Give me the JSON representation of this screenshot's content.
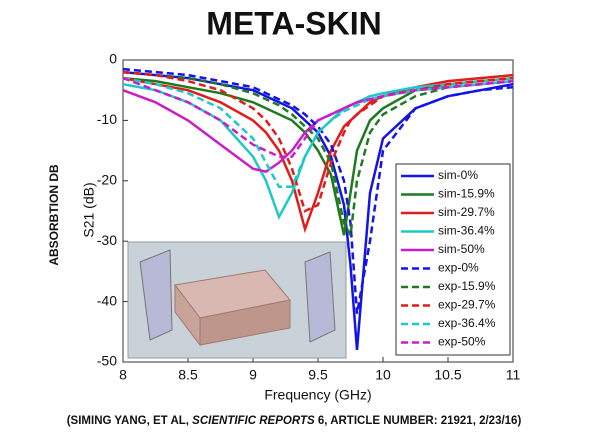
{
  "chart_data": {
    "type": "line",
    "title": "META-SKIN",
    "page_y_label": "ABSORBTION DB",
    "ylabel": "S21 (dB)",
    "xlabel": "Frequency (GHz)",
    "citation_prefix": "(SIMING YANG, ET AL, ",
    "citation_journal": "SCIENTIFIC REPORTS",
    "citation_suffix": " 6, ARTICLE NUMBER: 21921, 2/23/16)",
    "xlim": [
      8,
      11
    ],
    "xticks": [
      8,
      8.5,
      9,
      9.5,
      10,
      10.5,
      11
    ],
    "ylim": [
      -50,
      0
    ],
    "yticks": [
      0,
      -10,
      -20,
      -30,
      -40,
      -50
    ],
    "x": [
      8,
      8.25,
      8.5,
      8.75,
      9,
      9.1,
      9.2,
      9.3,
      9.4,
      9.5,
      9.6,
      9.7,
      9.75,
      9.8,
      9.9,
      10,
      10.25,
      10.5,
      10.75,
      11
    ],
    "series": [
      {
        "name": "sim-0%",
        "color": "#1414e6",
        "style": "solid",
        "values": [
          -2,
          -2.5,
          -3,
          -4,
          -5,
          -6,
          -7,
          -8,
          -10,
          -12,
          -16,
          -24,
          -34,
          -48,
          -22,
          -13,
          -8,
          -6,
          -5,
          -4
        ]
      },
      {
        "name": "sim-15.9%",
        "color": "#1f7a1f",
        "style": "solid",
        "values": [
          -3,
          -3.5,
          -4.5,
          -5.5,
          -7,
          -8,
          -9,
          -10,
          -12,
          -15,
          -19,
          -29,
          -22,
          -15,
          -10,
          -8,
          -5,
          -4,
          -3.5,
          -3
        ]
      },
      {
        "name": "sim-29.7%",
        "color": "#e21b1b",
        "style": "solid",
        "values": [
          -3,
          -4,
          -5,
          -7,
          -10,
          -12,
          -15,
          -20,
          -28,
          -22,
          -15,
          -11,
          -10,
          -9,
          -7,
          -6,
          -4.5,
          -3.5,
          -3,
          -2.5
        ]
      },
      {
        "name": "sim-36.4%",
        "color": "#1ec8c8",
        "style": "solid",
        "values": [
          -4,
          -5,
          -7,
          -10,
          -16,
          -20,
          -26,
          -22,
          -16,
          -12,
          -10,
          -8,
          -7.5,
          -7,
          -6,
          -5.5,
          -4.5,
          -4,
          -3.5,
          -3
        ]
      },
      {
        "name": "sim-50%",
        "color": "#c81ec8",
        "style": "solid",
        "values": [
          -5,
          -7,
          -10,
          -14,
          -18,
          -18.5,
          -17,
          -15,
          -12,
          -10,
          -9,
          -8,
          -7.5,
          -7,
          -6.5,
          -6,
          -5,
          -4.5,
          -4,
          -3.5
        ]
      },
      {
        "name": "exp-0%",
        "color": "#1414e6",
        "style": "dashed",
        "values": [
          -1.5,
          -2,
          -2.5,
          -3.5,
          -4.5,
          -5.5,
          -6.5,
          -7.5,
          -9,
          -11,
          -14,
          -20,
          -27,
          -42,
          -30,
          -15,
          -8,
          -6,
          -5,
          -4.5
        ]
      },
      {
        "name": "exp-15.9%",
        "color": "#1f7a1f",
        "style": "dashed",
        "values": [
          -2,
          -2.5,
          -3,
          -4,
          -5.5,
          -6.5,
          -7.5,
          -9,
          -11,
          -13,
          -17,
          -27,
          -29,
          -20,
          -12,
          -9,
          -6,
          -4.5,
          -4,
          -3.5
        ]
      },
      {
        "name": "exp-29.7%",
        "color": "#e21b1b",
        "style": "dashed",
        "values": [
          -2,
          -2.5,
          -3.5,
          -5,
          -8,
          -10,
          -13,
          -18,
          -25,
          -24,
          -17,
          -12,
          -10,
          -9,
          -7.5,
          -6,
          -5,
          -4,
          -3.5,
          -3
        ]
      },
      {
        "name": "exp-36.4%",
        "color": "#1ec8c8",
        "style": "dashed",
        "values": [
          -3,
          -4,
          -5.5,
          -8,
          -13,
          -17,
          -21,
          -21,
          -16,
          -12,
          -10,
          -8.5,
          -8,
          -7.5,
          -6.5,
          -6,
          -5,
          -4.5,
          -4,
          -3.5
        ]
      },
      {
        "name": "exp-50%",
        "color": "#c81ec8",
        "style": "dashed",
        "values": [
          -3,
          -5,
          -7,
          -10,
          -14,
          -15,
          -16,
          -16,
          -13,
          -10,
          -9,
          -8,
          -7.5,
          -7,
          -6.5,
          -6,
          -5,
          -4.5,
          -4,
          -3.5
        ]
      }
    ]
  }
}
